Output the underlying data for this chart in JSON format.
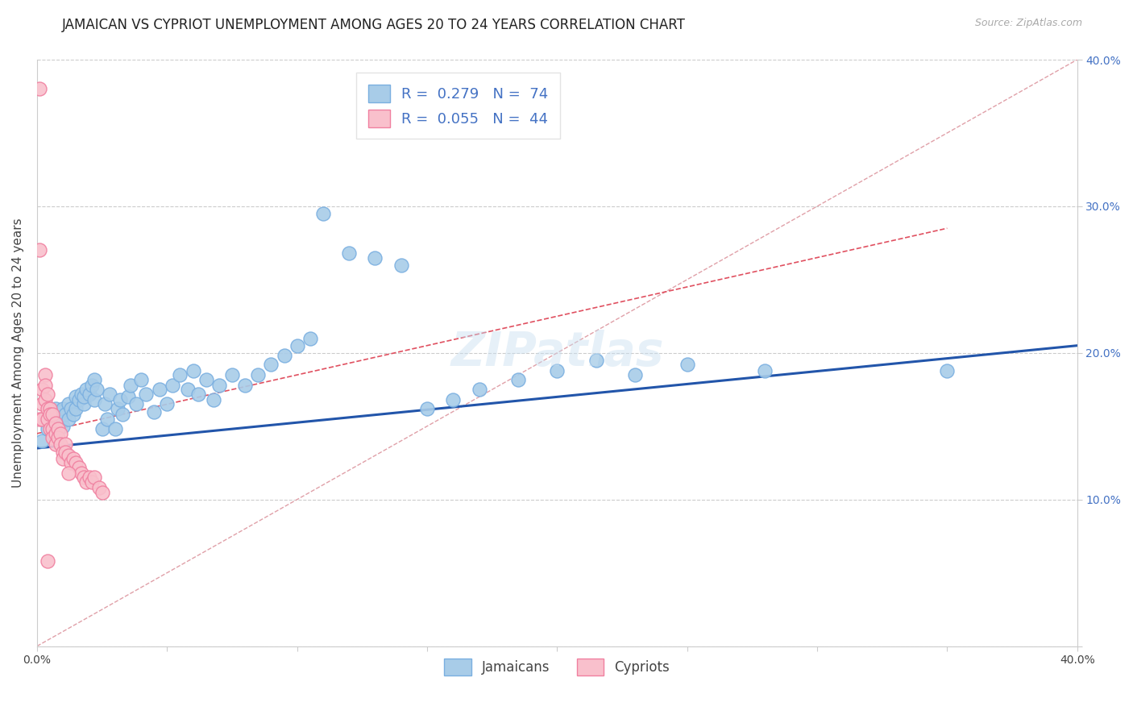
{
  "title": "JAMAICAN VS CYPRIOT UNEMPLOYMENT AMONG AGES 20 TO 24 YEARS CORRELATION CHART",
  "source": "Source: ZipAtlas.com",
  "ylabel": "Unemployment Among Ages 20 to 24 years",
  "xlim": [
    0.0,
    0.4
  ],
  "ylim": [
    0.0,
    0.4
  ],
  "scatter_color_jamaican": "#a8cce8",
  "scatter_edge_jamaican": "#7aafe0",
  "scatter_color_cypriot": "#f9c0cc",
  "scatter_edge_cypriot": "#f080a0",
  "line_color_jamaican": "#2255aa",
  "line_color_cypriot": "#e05060",
  "diag_color": "#e0a0a8",
  "watermark": "ZIPatlas",
  "title_fontsize": 12,
  "label_fontsize": 11,
  "tick_fontsize": 10,
  "legend_fontsize": 13,
  "blue_line": [
    0.0,
    0.4,
    0.135,
    0.205
  ],
  "pink_line": [
    0.0,
    0.35,
    0.145,
    0.285
  ],
  "jam_x": [
    0.002,
    0.003,
    0.004,
    0.005,
    0.005,
    0.006,
    0.007,
    0.007,
    0.008,
    0.009,
    0.01,
    0.01,
    0.011,
    0.012,
    0.012,
    0.013,
    0.014,
    0.015,
    0.015,
    0.016,
    0.017,
    0.018,
    0.018,
    0.019,
    0.02,
    0.021,
    0.022,
    0.022,
    0.023,
    0.025,
    0.026,
    0.027,
    0.028,
    0.03,
    0.031,
    0.032,
    0.033,
    0.035,
    0.036,
    0.038,
    0.04,
    0.042,
    0.045,
    0.047,
    0.05,
    0.052,
    0.055,
    0.058,
    0.06,
    0.062,
    0.065,
    0.068,
    0.07,
    0.075,
    0.08,
    0.085,
    0.09,
    0.095,
    0.1,
    0.105,
    0.11,
    0.12,
    0.13,
    0.14,
    0.15,
    0.16,
    0.17,
    0.185,
    0.2,
    0.215,
    0.23,
    0.25,
    0.28,
    0.35
  ],
  "jam_y": [
    0.14,
    0.155,
    0.148,
    0.152,
    0.158,
    0.145,
    0.162,
    0.148,
    0.155,
    0.16,
    0.162,
    0.15,
    0.158,
    0.165,
    0.155,
    0.162,
    0.158,
    0.17,
    0.162,
    0.168,
    0.172,
    0.165,
    0.17,
    0.175,
    0.172,
    0.178,
    0.168,
    0.182,
    0.175,
    0.148,
    0.165,
    0.155,
    0.172,
    0.148,
    0.162,
    0.168,
    0.158,
    0.17,
    0.178,
    0.165,
    0.182,
    0.172,
    0.16,
    0.175,
    0.165,
    0.178,
    0.185,
    0.175,
    0.188,
    0.172,
    0.182,
    0.168,
    0.178,
    0.185,
    0.178,
    0.185,
    0.192,
    0.198,
    0.205,
    0.21,
    0.295,
    0.268,
    0.265,
    0.26,
    0.162,
    0.168,
    0.175,
    0.182,
    0.188,
    0.195,
    0.185,
    0.192,
    0.188,
    0.188
  ],
  "cyp_x": [
    0.001,
    0.001,
    0.001,
    0.002,
    0.002,
    0.002,
    0.003,
    0.003,
    0.003,
    0.004,
    0.004,
    0.004,
    0.005,
    0.005,
    0.005,
    0.006,
    0.006,
    0.006,
    0.007,
    0.007,
    0.007,
    0.008,
    0.008,
    0.009,
    0.009,
    0.01,
    0.01,
    0.011,
    0.011,
    0.012,
    0.013,
    0.014,
    0.015,
    0.016,
    0.017,
    0.018,
    0.019,
    0.02,
    0.021,
    0.022,
    0.024,
    0.025,
    0.012,
    0.004
  ],
  "cyp_y": [
    0.38,
    0.155,
    0.27,
    0.165,
    0.175,
    0.155,
    0.185,
    0.178,
    0.168,
    0.172,
    0.162,
    0.155,
    0.162,
    0.148,
    0.158,
    0.158,
    0.148,
    0.142,
    0.152,
    0.145,
    0.138,
    0.148,
    0.142,
    0.145,
    0.138,
    0.132,
    0.128,
    0.138,
    0.132,
    0.13,
    0.125,
    0.128,
    0.125,
    0.122,
    0.118,
    0.115,
    0.112,
    0.115,
    0.112,
    0.115,
    0.108,
    0.105,
    0.118,
    0.058
  ]
}
